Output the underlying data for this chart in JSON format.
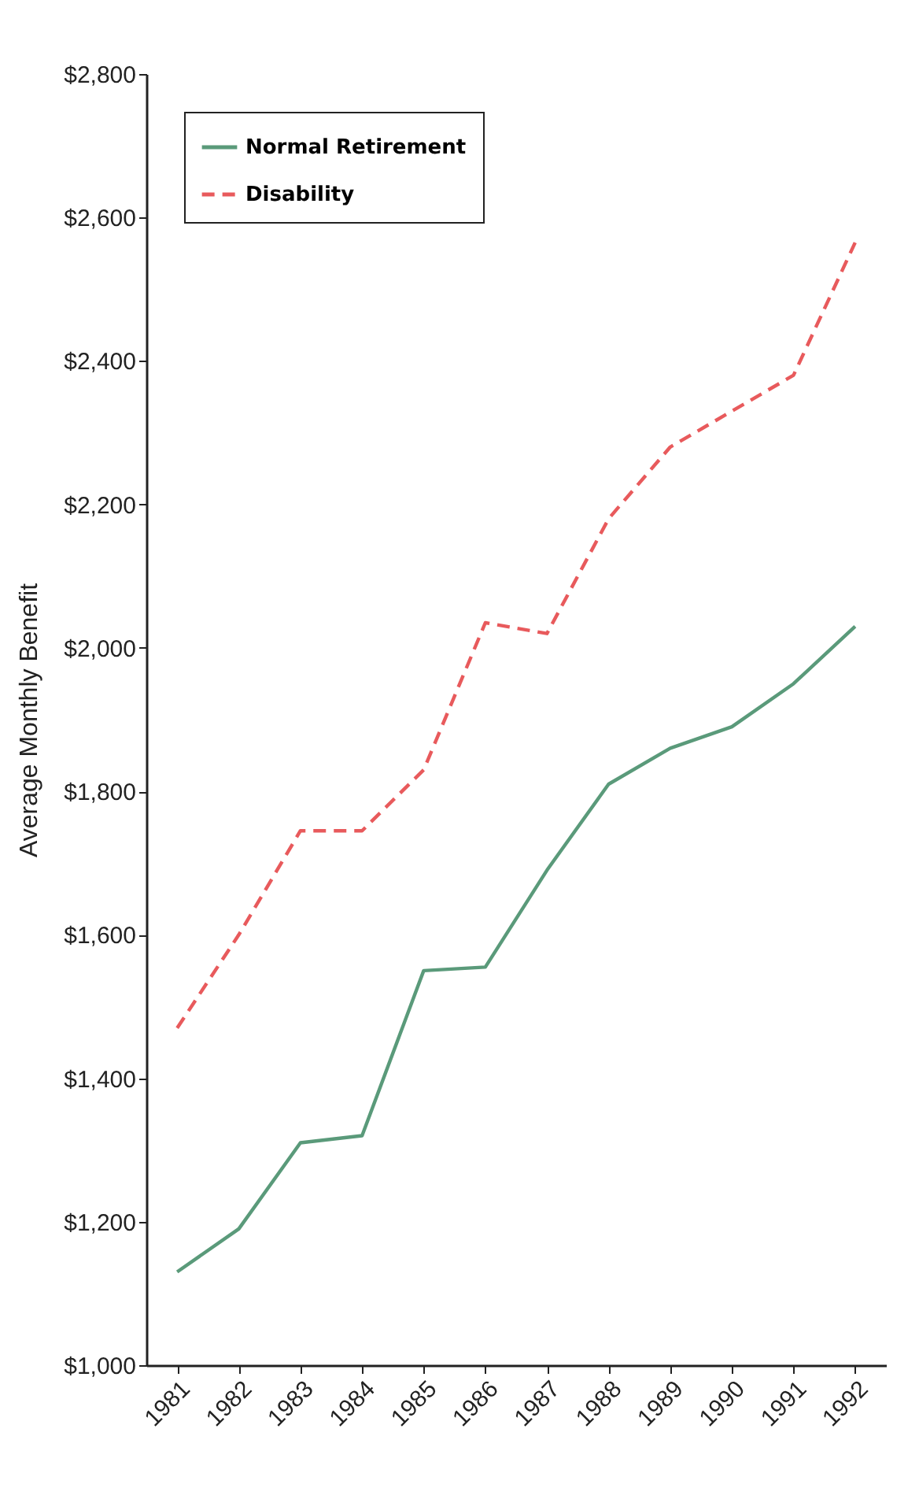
{
  "chart_data": {
    "type": "line",
    "ylabel": "Average Monthly Benefit",
    "categories": [
      "1981",
      "1982",
      "1983",
      "1984",
      "1985",
      "1986",
      "1987",
      "1988",
      "1989",
      "1990",
      "1991",
      "1992"
    ],
    "series": [
      {
        "name": "Normal Retirement",
        "color": "#5a9a7a",
        "line_style": "solid",
        "values": [
          1130,
          1190,
          1310,
          1320,
          1550,
          1555,
          1690,
          1810,
          1860,
          1890,
          1950,
          2030
        ]
      },
      {
        "name": "Disability",
        "color": "#e85a5c",
        "line_style": "dashed",
        "values": [
          1470,
          1600,
          1745,
          1745,
          1830,
          2035,
          2020,
          2180,
          2280,
          2330,
          2380,
          2565
        ]
      }
    ],
    "ylim": [
      1000,
      2800
    ],
    "yticks": [
      {
        "value": 1000,
        "label": "$1,000"
      },
      {
        "value": 1200,
        "label": "$1,200"
      },
      {
        "value": 1400,
        "label": "$1,400"
      },
      {
        "value": 1600,
        "label": "$1,600"
      },
      {
        "value": 1800,
        "label": "$1,800"
      },
      {
        "value": 2000,
        "label": "$2,000"
      },
      {
        "value": 2200,
        "label": "$2,200"
      },
      {
        "value": 2400,
        "label": "$2,400"
      },
      {
        "value": 2600,
        "label": "$2,600"
      },
      {
        "value": 2800,
        "label": "$2,800"
      }
    ],
    "grid": false,
    "legend": "top left",
    "marker": "none"
  }
}
